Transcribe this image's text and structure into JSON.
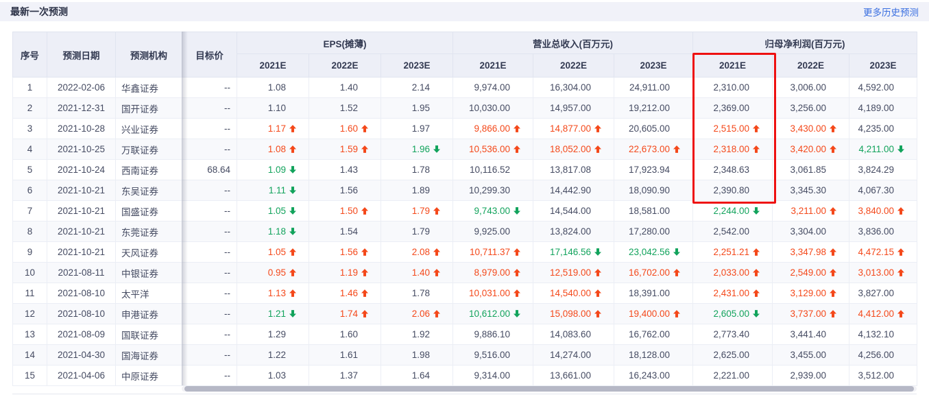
{
  "header": {
    "title": "最新一次预测",
    "more_link": "更多历史预测"
  },
  "colors": {
    "up_red": "#f4481a",
    "down_green": "#12a35c",
    "link_blue": "#3a6fe0",
    "highlight_border": "#ee1010",
    "header_bg": "#edeff7",
    "bar_bg": "#f1f2f9"
  },
  "table": {
    "col_headers": {
      "seq": "序号",
      "date": "预测日期",
      "org": "预测机构",
      "target": "目标价"
    },
    "groups": [
      {
        "label": "EPS(摊薄)"
      },
      {
        "label": "营业总收入(百万元)"
      },
      {
        "label": "归母净利润(百万元)"
      }
    ],
    "years": [
      "2021E",
      "2022E",
      "2023E"
    ],
    "highlight": "归母净利润(百万元) 2021E 列（表头至第6行）",
    "rows": [
      {
        "seq": "1",
        "date": "2022-02-06",
        "org": "华鑫证券",
        "target": "--",
        "vals": [
          [
            "1.08",
            ""
          ],
          [
            "1.40",
            ""
          ],
          [
            "2.14",
            ""
          ],
          [
            "9,974.00",
            ""
          ],
          [
            "16,304.00",
            ""
          ],
          [
            "24,911.00",
            ""
          ],
          [
            "2,310.00",
            ""
          ],
          [
            "3,006.00",
            ""
          ],
          [
            "4,592.00",
            ""
          ]
        ]
      },
      {
        "seq": "2",
        "date": "2021-12-31",
        "org": "国开证券",
        "target": "--",
        "vals": [
          [
            "1.10",
            ""
          ],
          [
            "1.52",
            ""
          ],
          [
            "1.95",
            ""
          ],
          [
            "10,030.00",
            ""
          ],
          [
            "14,957.00",
            ""
          ],
          [
            "19,212.00",
            ""
          ],
          [
            "2,369.00",
            ""
          ],
          [
            "3,256.00",
            ""
          ],
          [
            "4,189.00",
            ""
          ]
        ]
      },
      {
        "seq": "3",
        "date": "2021-10-28",
        "org": "兴业证券",
        "target": "--",
        "vals": [
          [
            "1.17",
            "u"
          ],
          [
            "1.60",
            "u"
          ],
          [
            "1.97",
            ""
          ],
          [
            "9,866.00",
            "u"
          ],
          [
            "14,877.00",
            "u"
          ],
          [
            "20,605.00",
            ""
          ],
          [
            "2,515.00",
            "u"
          ],
          [
            "3,430.00",
            "u"
          ],
          [
            "4,235.00",
            ""
          ]
        ]
      },
      {
        "seq": "4",
        "date": "2021-10-25",
        "org": "万联证券",
        "target": "--",
        "vals": [
          [
            "1.08",
            "u"
          ],
          [
            "1.59",
            "u"
          ],
          [
            "1.96",
            "d"
          ],
          [
            "10,536.00",
            "u"
          ],
          [
            "18,052.00",
            "u"
          ],
          [
            "22,673.00",
            "u"
          ],
          [
            "2,318.00",
            "u"
          ],
          [
            "3,420.00",
            "u"
          ],
          [
            "4,211.00",
            "d"
          ]
        ]
      },
      {
        "seq": "5",
        "date": "2021-10-24",
        "org": "西南证券",
        "target": "68.64",
        "vals": [
          [
            "1.09",
            "d"
          ],
          [
            "1.43",
            ""
          ],
          [
            "1.78",
            ""
          ],
          [
            "10,116.52",
            ""
          ],
          [
            "13,817.08",
            ""
          ],
          [
            "17,923.94",
            ""
          ],
          [
            "2,348.63",
            ""
          ],
          [
            "3,061.85",
            ""
          ],
          [
            "3,824.29",
            ""
          ]
        ]
      },
      {
        "seq": "6",
        "date": "2021-10-21",
        "org": "东吴证券",
        "target": "--",
        "vals": [
          [
            "1.11",
            "d"
          ],
          [
            "1.56",
            ""
          ],
          [
            "1.89",
            ""
          ],
          [
            "10,299.30",
            ""
          ],
          [
            "14,442.90",
            ""
          ],
          [
            "18,090.90",
            ""
          ],
          [
            "2,390.80",
            ""
          ],
          [
            "3,345.30",
            ""
          ],
          [
            "4,067.30",
            ""
          ]
        ]
      },
      {
        "seq": "7",
        "date": "2021-10-21",
        "org": "国盛证券",
        "target": "--",
        "vals": [
          [
            "1.05",
            "d"
          ],
          [
            "1.50",
            "u"
          ],
          [
            "1.79",
            "u"
          ],
          [
            "9,743.00",
            "d"
          ],
          [
            "14,544.00",
            ""
          ],
          [
            "18,581.00",
            ""
          ],
          [
            "2,244.00",
            "d"
          ],
          [
            "3,211.00",
            "u"
          ],
          [
            "3,840.00",
            "u"
          ]
        ]
      },
      {
        "seq": "8",
        "date": "2021-10-21",
        "org": "东莞证券",
        "target": "--",
        "vals": [
          [
            "1.18",
            "d"
          ],
          [
            "1.54",
            ""
          ],
          [
            "1.79",
            ""
          ],
          [
            "9,925.00",
            ""
          ],
          [
            "13,824.00",
            ""
          ],
          [
            "17,280.00",
            ""
          ],
          [
            "2,542.00",
            ""
          ],
          [
            "3,304.00",
            ""
          ],
          [
            "3,836.00",
            ""
          ]
        ]
      },
      {
        "seq": "9",
        "date": "2021-10-21",
        "org": "天风证券",
        "target": "--",
        "vals": [
          [
            "1.05",
            "u"
          ],
          [
            "1.56",
            "u"
          ],
          [
            "2.08",
            "u"
          ],
          [
            "10,711.37",
            "u"
          ],
          [
            "17,146.56",
            "d"
          ],
          [
            "23,042.56",
            "d"
          ],
          [
            "2,251.21",
            "u"
          ],
          [
            "3,347.98",
            "u"
          ],
          [
            "4,472.15",
            "u"
          ]
        ]
      },
      {
        "seq": "10",
        "date": "2021-08-11",
        "org": "中银证券",
        "target": "--",
        "vals": [
          [
            "0.95",
            "u"
          ],
          [
            "1.19",
            "u"
          ],
          [
            "1.40",
            "u"
          ],
          [
            "8,979.00",
            "u"
          ],
          [
            "12,519.00",
            "u"
          ],
          [
            "16,702.00",
            "u"
          ],
          [
            "2,033.00",
            "u"
          ],
          [
            "2,549.00",
            "u"
          ],
          [
            "3,013.00",
            "u"
          ]
        ]
      },
      {
        "seq": "11",
        "date": "2021-08-10",
        "org": "太平洋",
        "target": "--",
        "vals": [
          [
            "1.13",
            "u"
          ],
          [
            "1.46",
            "u"
          ],
          [
            "1.78",
            ""
          ],
          [
            "10,031.00",
            "u"
          ],
          [
            "14,540.00",
            "u"
          ],
          [
            "18,391.00",
            ""
          ],
          [
            "2,431.00",
            "u"
          ],
          [
            "3,129.00",
            "u"
          ],
          [
            "3,827.00",
            ""
          ]
        ]
      },
      {
        "seq": "12",
        "date": "2021-08-10",
        "org": "申港证券",
        "target": "--",
        "vals": [
          [
            "1.21",
            "d"
          ],
          [
            "1.74",
            "u"
          ],
          [
            "2.06",
            "u"
          ],
          [
            "10,612.00",
            "d"
          ],
          [
            "15,098.00",
            "u"
          ],
          [
            "19,400.00",
            "u"
          ],
          [
            "2,605.00",
            "d"
          ],
          [
            "3,737.00",
            "u"
          ],
          [
            "4,412.00",
            "u"
          ]
        ]
      },
      {
        "seq": "13",
        "date": "2021-08-09",
        "org": "国联证券",
        "target": "--",
        "vals": [
          [
            "1.29",
            ""
          ],
          [
            "1.60",
            ""
          ],
          [
            "1.92",
            ""
          ],
          [
            "9,886.10",
            ""
          ],
          [
            "14,083.60",
            ""
          ],
          [
            "16,762.00",
            ""
          ],
          [
            "2,773.40",
            ""
          ],
          [
            "3,441.40",
            ""
          ],
          [
            "4,132.10",
            ""
          ]
        ]
      },
      {
        "seq": "14",
        "date": "2021-04-30",
        "org": "国海证券",
        "target": "--",
        "vals": [
          [
            "1.22",
            ""
          ],
          [
            "1.61",
            ""
          ],
          [
            "1.98",
            ""
          ],
          [
            "9,516.00",
            ""
          ],
          [
            "14,274.00",
            ""
          ],
          [
            "18,128.00",
            ""
          ],
          [
            "2,625.00",
            ""
          ],
          [
            "3,455.00",
            ""
          ],
          [
            "4,256.00",
            ""
          ]
        ]
      },
      {
        "seq": "15",
        "date": "2021-04-06",
        "org": "中原证券",
        "target": "--",
        "vals": [
          [
            "1.03",
            ""
          ],
          [
            "1.37",
            ""
          ],
          [
            "1.64",
            ""
          ],
          [
            "9,314.00",
            ""
          ],
          [
            "13,661.00",
            ""
          ],
          [
            "16,243.00",
            ""
          ],
          [
            "2,221.00",
            ""
          ],
          [
            "2,939.00",
            ""
          ],
          [
            "3,512.00",
            ""
          ]
        ]
      }
    ]
  },
  "scrollbar": {
    "orientation": "horizontal",
    "position": "bottom"
  }
}
